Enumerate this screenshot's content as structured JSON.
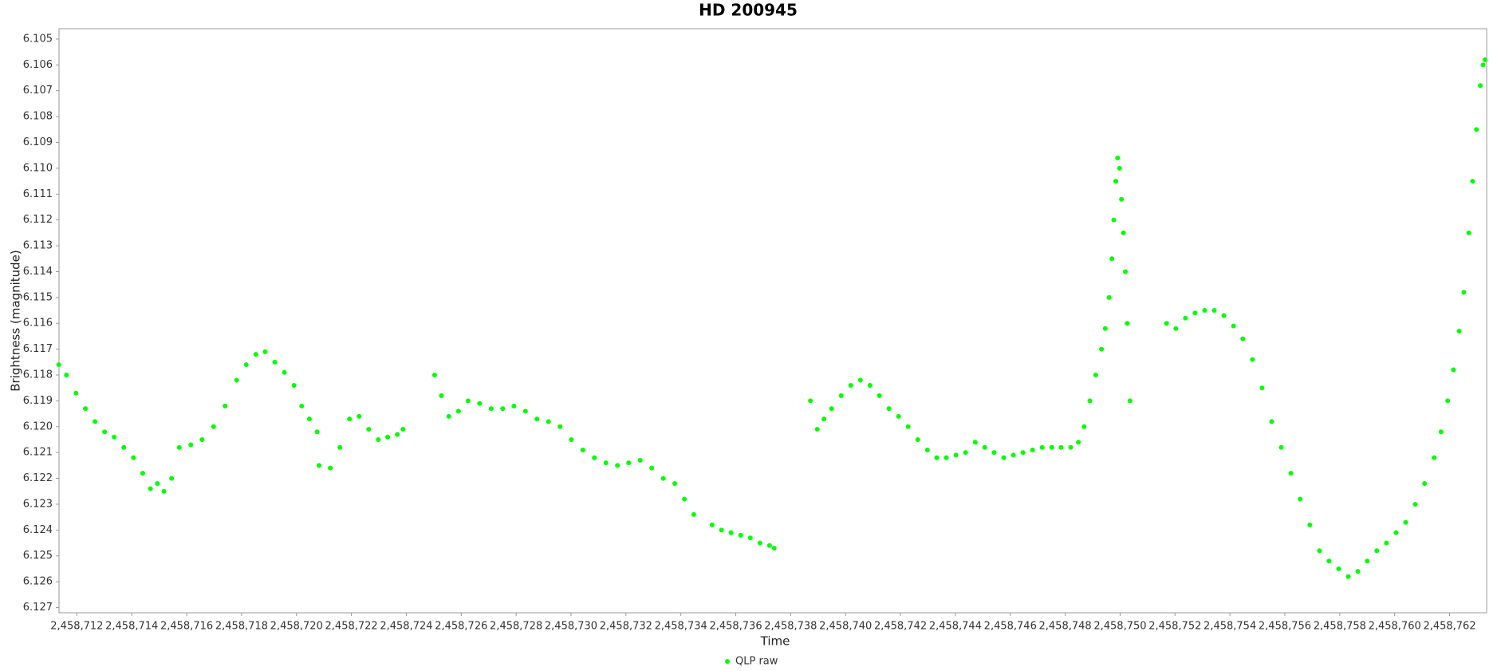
{
  "chart_data": {
    "type": "scatter",
    "title": "HD 200945",
    "x_label": "Time",
    "y_label": "Brightness (magnitude)",
    "y_inverted": true,
    "grid": false,
    "legend": "bottom",
    "xlim": [
      2458711.35,
      2458763.35
    ],
    "ylim": [
      6.1046,
      6.1272
    ],
    "xticks": [
      {
        "value": 2458712,
        "label": "2,458,712"
      },
      {
        "value": 2458714,
        "label": "2,458,714"
      },
      {
        "value": 2458716,
        "label": "2,458,716"
      },
      {
        "value": 2458718,
        "label": "2,458,718"
      },
      {
        "value": 2458720,
        "label": "2,458,720"
      },
      {
        "value": 2458722,
        "label": "2,458,722"
      },
      {
        "value": 2458724,
        "label": "2,458,724"
      },
      {
        "value": 2458726,
        "label": "2,458,726"
      },
      {
        "value": 2458728,
        "label": "2,458,728"
      },
      {
        "value": 2458730,
        "label": "2,458,730"
      },
      {
        "value": 2458732,
        "label": "2,458,732"
      },
      {
        "value": 2458734,
        "label": "2,458,734"
      },
      {
        "value": 2458736,
        "label": "2,458,736"
      },
      {
        "value": 2458738,
        "label": "2,458,738"
      },
      {
        "value": 2458740,
        "label": "2,458,740"
      },
      {
        "value": 2458742,
        "label": "2,458,742"
      },
      {
        "value": 2458744,
        "label": "2,458,744"
      },
      {
        "value": 2458746,
        "label": "2,458,746"
      },
      {
        "value": 2458748,
        "label": "2,458,748"
      },
      {
        "value": 2458750,
        "label": "2,458,750"
      },
      {
        "value": 2458752,
        "label": "2,458,752"
      },
      {
        "value": 2458754,
        "label": "2,458,754"
      },
      {
        "value": 2458756,
        "label": "2,458,756"
      },
      {
        "value": 2458758,
        "label": "2,458,758"
      },
      {
        "value": 2458760,
        "label": "2,458,760"
      },
      {
        "value": 2458762,
        "label": "2,458,762"
      }
    ],
    "yticks": [
      6.105,
      6.106,
      6.107,
      6.108,
      6.109,
      {
        "value": 6.11,
        "label": "6.110"
      },
      6.111,
      6.112,
      6.113,
      6.114,
      6.115,
      6.116,
      6.117,
      6.118,
      6.119,
      {
        "value": 6.12,
        "label": "6.120"
      },
      6.121,
      6.122,
      6.123,
      6.124,
      6.125,
      6.126,
      6.127
    ],
    "x": [
      2458711.34,
      2458711.62,
      2458711.97,
      2458712.31,
      2458712.66,
      2458713.01,
      2458713.36,
      2458713.71,
      2458714.06,
      2458714.4,
      2458714.68,
      2458714.93,
      2458715.17,
      2458715.45,
      2458715.73,
      2458716.15,
      2458716.56,
      2458716.98,
      2458717.4,
      2458717.82,
      2458718.17,
      2458718.52,
      2458718.86,
      2458719.21,
      2458719.56,
      2458719.91,
      2458720.19,
      2458720.47,
      2458720.75,
      2458720.82,
      2458721.23,
      2458721.58,
      2458721.93,
      2458722.28,
      2458722.63,
      2458722.98,
      2458723.32,
      2458723.67,
      2458723.88,
      2458725.03,
      2458725.28,
      2458725.55,
      2458725.9,
      2458726.25,
      2458726.67,
      2458727.09,
      2458727.51,
      2458727.92,
      2458728.34,
      2458728.76,
      2458729.18,
      2458729.6,
      2458730.01,
      2458730.43,
      2458730.85,
      2458731.27,
      2458731.69,
      2458732.1,
      2458732.52,
      2458732.94,
      2458733.36,
      2458733.78,
      2458734.13,
      2458734.47,
      2458735.14,
      2458735.48,
      2458735.83,
      2458736.18,
      2458736.53,
      2458736.88,
      2458737.23,
      2458737.4,
      2458738.72,
      2458738.97,
      2458739.21,
      2458739.49,
      2458739.84,
      2458740.19,
      2458740.54,
      2458740.89,
      2458741.23,
      2458741.58,
      2458741.93,
      2458742.28,
      2458742.63,
      2458742.98,
      2458743.32,
      2458743.67,
      2458744.02,
      2458744.37,
      2458744.72,
      2458745.07,
      2458745.41,
      2458745.76,
      2458746.11,
      2458746.46,
      2458746.81,
      2458747.16,
      2458747.51,
      2458747.85,
      2458748.2,
      2458748.48,
      2458748.69,
      2458748.9,
      2458749.11,
      2458749.32,
      2458749.46,
      2458749.6,
      2458749.7,
      2458749.77,
      2458749.84,
      2458749.91,
      2458749.98,
      2458750.05,
      2458750.12,
      2458750.19,
      2458750.26,
      2458750.36,
      2458751.69,
      2458752.03,
      2458752.38,
      2458752.73,
      2458753.08,
      2458753.43,
      2458753.78,
      2458754.13,
      2458754.47,
      2458754.82,
      2458755.17,
      2458755.52,
      2458755.87,
      2458756.22,
      2458756.56,
      2458756.91,
      2458757.26,
      2458757.61,
      2458757.96,
      2458758.31,
      2458758.66,
      2458759.0,
      2458759.35,
      2458759.7,
      2458760.05,
      2458760.4,
      2458760.75,
      2458761.09,
      2458761.44,
      2458761.69,
      2458761.93,
      2458762.14,
      2458762.35,
      2458762.52,
      2458762.7,
      2458762.84,
      2458762.98,
      2458763.12,
      2458763.22,
      2458763.29
    ],
    "series": [
      {
        "name": "QLP raw",
        "color": "#00ff00",
        "values": [
          6.1176,
          6.118,
          6.1187,
          6.1193,
          6.1198,
          6.1202,
          6.1204,
          6.1208,
          6.1212,
          6.1218,
          6.1224,
          6.1222,
          6.1225,
          6.122,
          6.1208,
          6.1207,
          6.1205,
          6.12,
          6.1192,
          6.1182,
          6.1176,
          6.1172,
          6.1171,
          6.1175,
          6.1179,
          6.1184,
          6.1192,
          6.1197,
          6.1202,
          6.1215,
          6.1216,
          6.1208,
          6.1197,
          6.1196,
          6.1201,
          6.1205,
          6.1204,
          6.1203,
          6.1201,
          6.118,
          6.1188,
          6.1196,
          6.1194,
          6.119,
          6.1191,
          6.1193,
          6.1193,
          6.1192,
          6.1194,
          6.1197,
          6.1198,
          6.12,
          6.1205,
          6.1209,
          6.1212,
          6.1214,
          6.1215,
          6.1214,
          6.1213,
          6.1216,
          6.122,
          6.1222,
          6.1228,
          6.1234,
          6.1238,
          6.124,
          6.1241,
          6.1242,
          6.1243,
          6.1245,
          6.1246,
          6.1247,
          6.119,
          6.1201,
          6.1197,
          6.1193,
          6.1188,
          6.1184,
          6.1182,
          6.1184,
          6.1188,
          6.1193,
          6.1196,
          6.12,
          6.1205,
          6.1209,
          6.1212,
          6.1212,
          6.1211,
          6.121,
          6.1206,
          6.1208,
          6.121,
          6.1212,
          6.1211,
          6.121,
          6.1209,
          6.1208,
          6.1208,
          6.1208,
          6.1208,
          6.1206,
          6.12,
          6.119,
          6.118,
          6.117,
          6.1162,
          6.115,
          6.1135,
          6.112,
          6.1105,
          6.1096,
          6.11,
          6.1112,
          6.1125,
          6.114,
          6.116,
          6.119,
          6.116,
          6.1162,
          6.1158,
          6.1156,
          6.1155,
          6.1155,
          6.1157,
          6.1161,
          6.1166,
          6.1174,
          6.1185,
          6.1198,
          6.1208,
          6.1218,
          6.1228,
          6.1238,
          6.1248,
          6.1252,
          6.1255,
          6.1258,
          6.1256,
          6.1252,
          6.1248,
          6.1245,
          6.1241,
          6.1237,
          6.123,
          6.1222,
          6.1212,
          6.1202,
          6.119,
          6.1178,
          6.1163,
          6.1148,
          6.1125,
          6.1105,
          6.1085,
          6.1068,
          6.106,
          6.1058
        ]
      }
    ]
  }
}
